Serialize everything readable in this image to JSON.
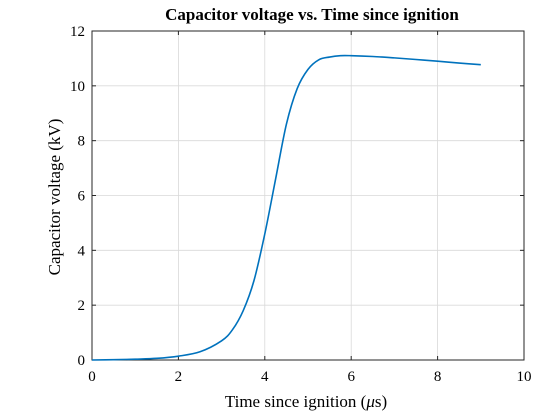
{
  "chart_data": {
    "type": "line",
    "title": "Capacitor voltage vs. Time since ignition",
    "xlabel_prefix": "Time since ignition (",
    "xlabel_unit_mu": "μ",
    "xlabel_suffix": "s)",
    "ylabel": "Capacitor voltage (kV)",
    "xlim": [
      0,
      10
    ],
    "ylim": [
      0,
      12
    ],
    "xticks": [
      0,
      2,
      4,
      6,
      8,
      10
    ],
    "yticks": [
      0,
      2,
      4,
      6,
      8,
      10,
      12
    ],
    "grid": true,
    "line_color": "#0072BD",
    "series": [
      {
        "x": [
          0.0,
          0.5,
          1.0,
          1.5,
          2.0,
          2.5,
          3.0,
          3.25,
          3.5,
          3.75,
          4.0,
          4.25,
          4.5,
          4.75,
          5.0,
          5.25,
          5.5,
          5.75,
          6.0,
          6.5,
          7.0,
          7.5,
          8.0,
          8.5,
          9.0
        ],
        "y": [
          0.0,
          0.01,
          0.03,
          0.06,
          0.14,
          0.3,
          0.7,
          1.1,
          1.8,
          2.9,
          4.6,
          6.6,
          8.6,
          9.9,
          10.6,
          10.95,
          11.05,
          11.1,
          11.1,
          11.07,
          11.02,
          10.96,
          10.9,
          10.83,
          10.77
        ]
      }
    ]
  }
}
